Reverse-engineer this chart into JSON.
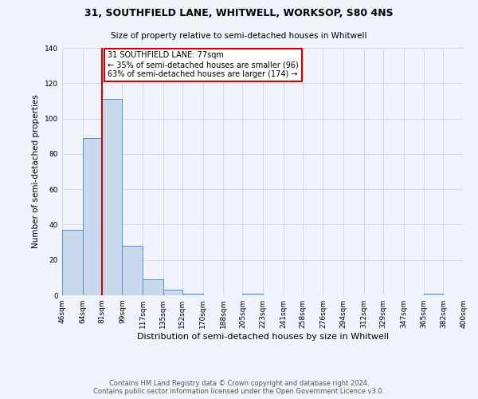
{
  "title": "31, SOUTHFIELD LANE, WHITWELL, WORKSOP, S80 4NS",
  "subtitle": "Size of property relative to semi-detached houses in Whitwell",
  "xlabel": "Distribution of semi-detached houses by size in Whitwell",
  "ylabel": "Number of semi-detached properties",
  "footnote1": "Contains HM Land Registry data © Crown copyright and database right 2024.",
  "footnote2": "Contains public sector information licensed under the Open Government Licence v3.0.",
  "bin_edges": [
    46,
    64,
    81,
    99,
    117,
    135,
    152,
    170,
    188,
    205,
    223,
    241,
    258,
    276,
    294,
    312,
    329,
    347,
    365,
    382,
    400
  ],
  "bar_heights": [
    37,
    89,
    111,
    28,
    9,
    3,
    1,
    0,
    0,
    1,
    0,
    0,
    0,
    0,
    0,
    0,
    0,
    0,
    1,
    0
  ],
  "bar_color": "#c8d9ee",
  "bar_edge_color": "#5b8fc7",
  "grid_color": "#cccccc",
  "background_color": "#f0f4fa",
  "plot_bg_color": "#f0f4fa",
  "property_line_x": 81,
  "property_line_color": "#cc0000",
  "annotation_text": "31 SOUTHFIELD LANE: 77sqm\n← 35% of semi-detached houses are smaller (96)\n63% of semi-detached houses are larger (174) →",
  "annotation_box_color": "#ffffff",
  "annotation_border_color": "#cc0000",
  "ylim": [
    0,
    140
  ],
  "yticks": [
    0,
    20,
    40,
    60,
    80,
    100,
    120,
    140
  ],
  "xtick_labels": [
    "46sqm",
    "64sqm",
    "81sqm",
    "99sqm",
    "117sqm",
    "135sqm",
    "152sqm",
    "170sqm",
    "188sqm",
    "205sqm",
    "223sqm",
    "241sqm",
    "258sqm",
    "276sqm",
    "294sqm",
    "312sqm",
    "329sqm",
    "347sqm",
    "365sqm",
    "382sqm",
    "400sqm"
  ]
}
